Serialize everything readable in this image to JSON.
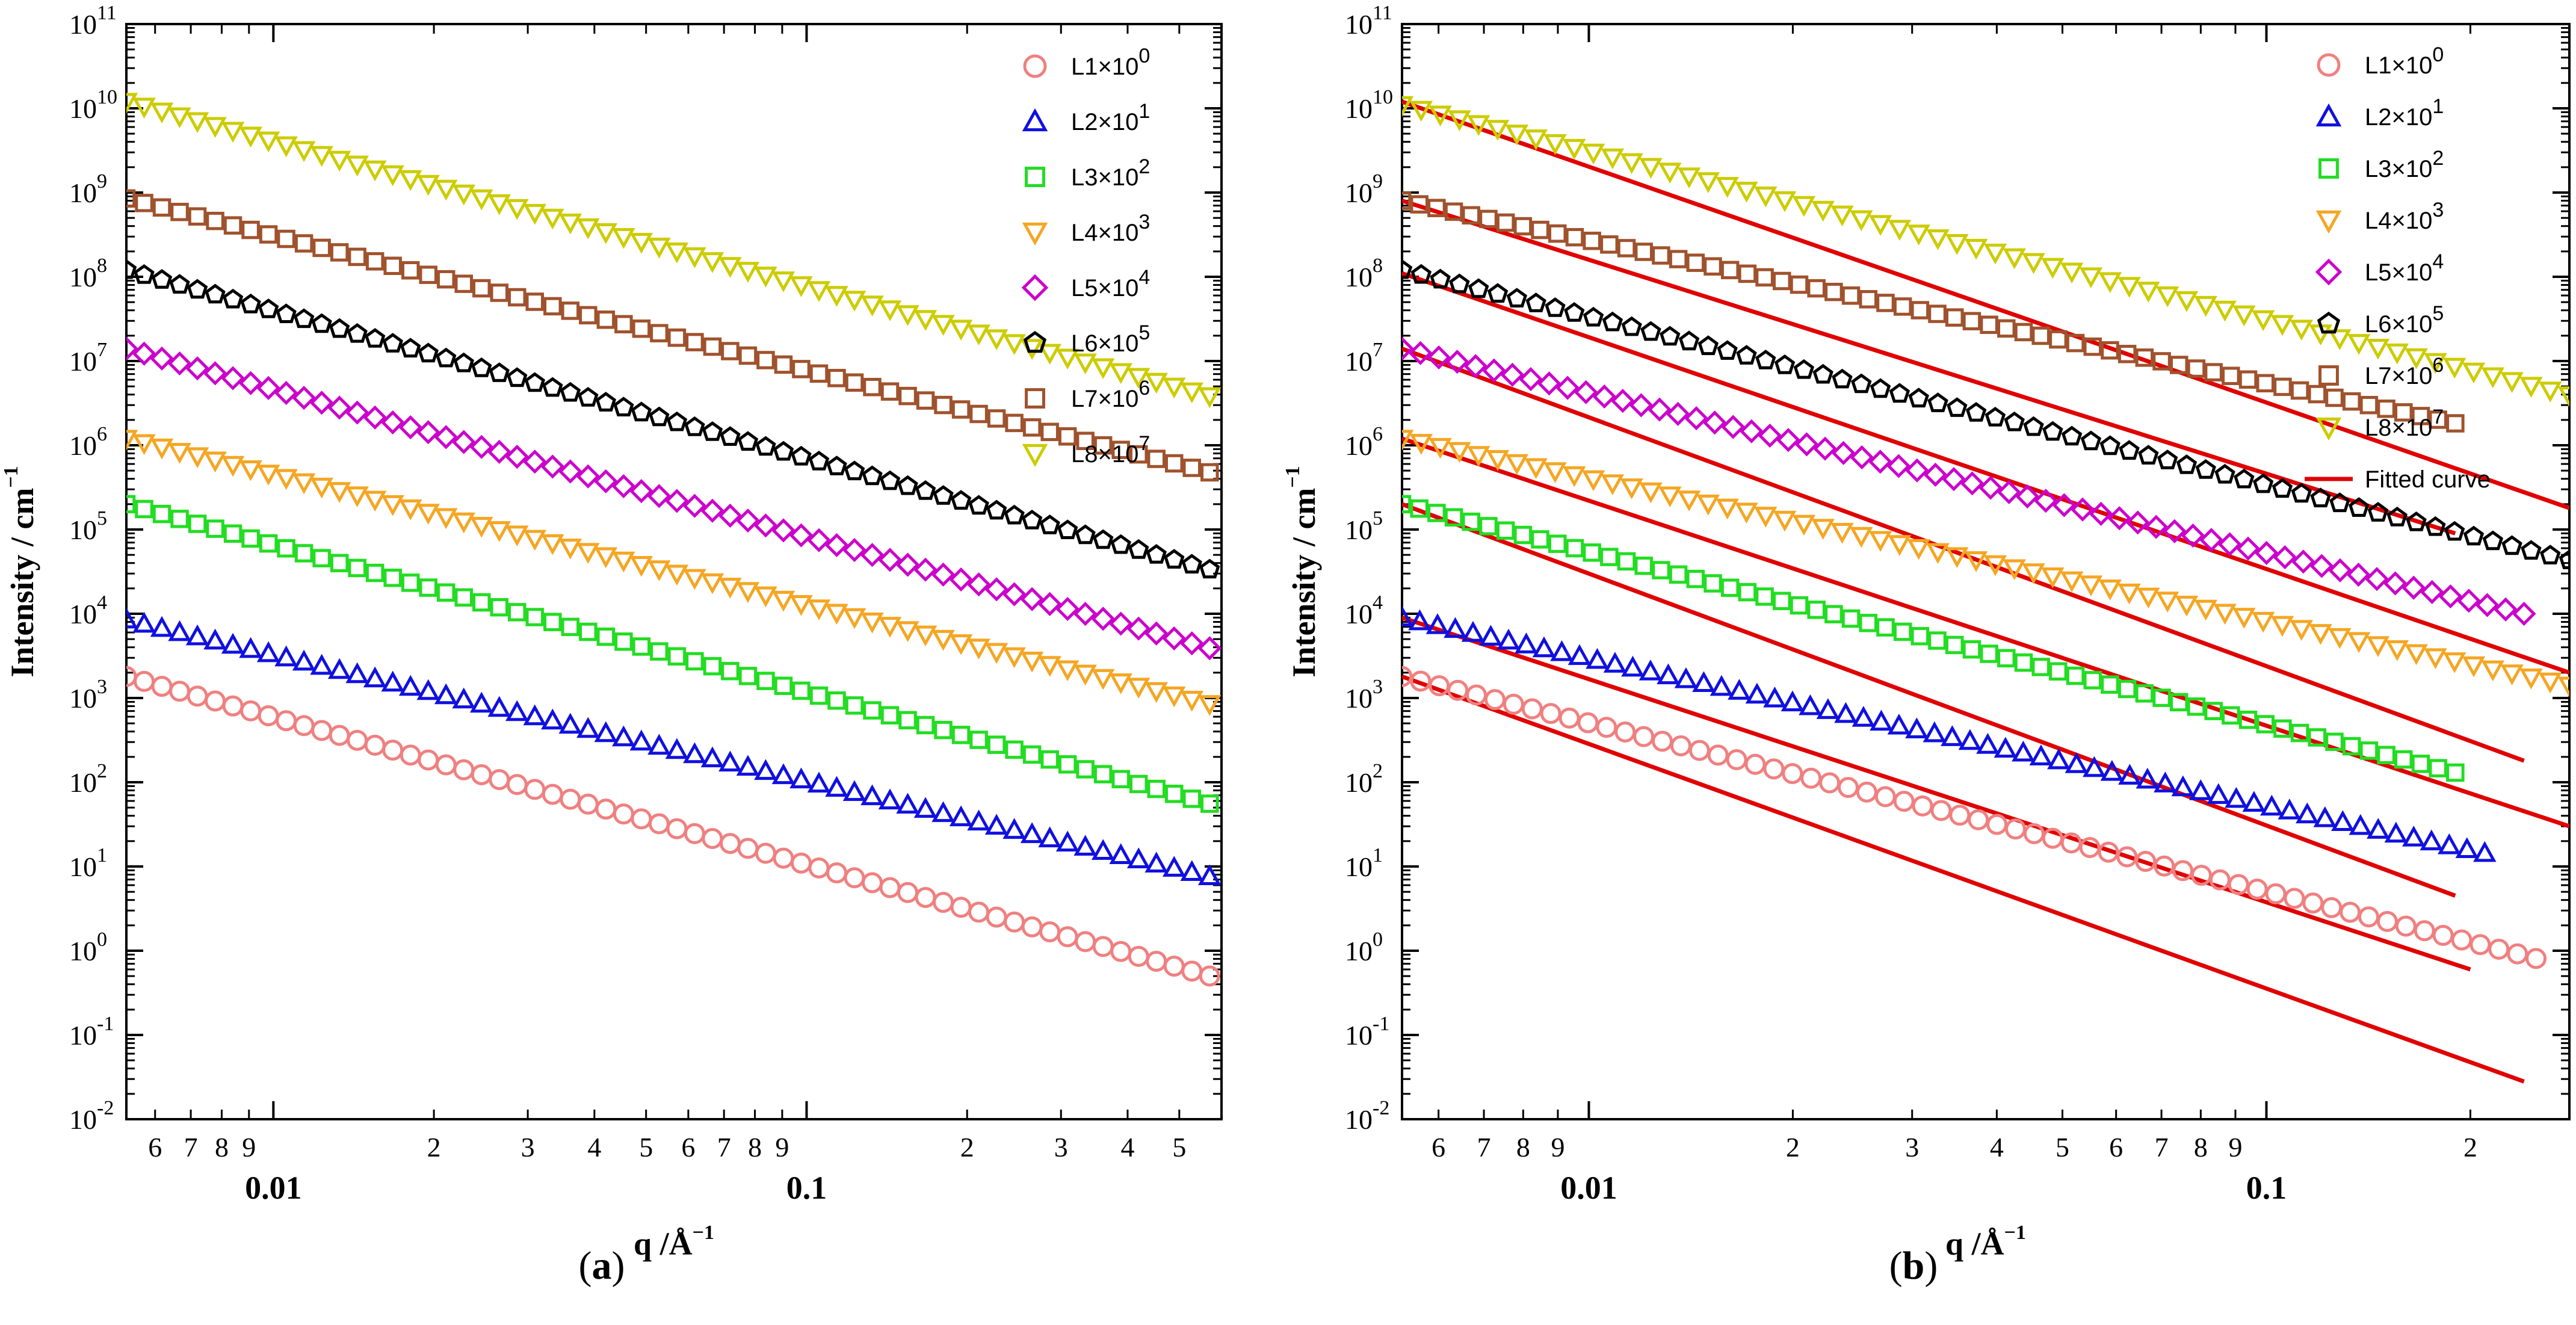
{
  "panels": [
    {
      "id": "a",
      "panel_label_open": "(",
      "panel_label_letter": "a",
      "panel_label_close": ")",
      "xlabel": "q /Å",
      "xlabel_sup": "−1",
      "ylabel": "Intensity / cm",
      "ylabel_sup": "−1",
      "y_tick_base": "10",
      "y_tick_exponents": [
        "-2",
        "-1",
        "0",
        "1",
        "2",
        "3",
        "4",
        "5",
        "6",
        "7",
        "8",
        "9",
        "10",
        "11"
      ],
      "x_minor_ticks": [
        {
          "q": 0.006,
          "label": "6"
        },
        {
          "q": 0.007,
          "label": "7"
        },
        {
          "q": 0.008,
          "label": "8"
        },
        {
          "q": 0.009,
          "label": "9"
        },
        {
          "q": 0.02,
          "label": "2"
        },
        {
          "q": 0.03,
          "label": "3"
        },
        {
          "q": 0.04,
          "label": "4"
        },
        {
          "q": 0.05,
          "label": "5"
        },
        {
          "q": 0.06,
          "label": "6"
        },
        {
          "q": 0.07,
          "label": "7"
        },
        {
          "q": 0.08,
          "label": "8"
        },
        {
          "q": 0.09,
          "label": "9"
        },
        {
          "q": 0.2,
          "label": "2"
        },
        {
          "q": 0.3,
          "label": "3"
        },
        {
          "q": 0.4,
          "label": "4"
        },
        {
          "q": 0.5,
          "label": "5"
        }
      ],
      "x_major_ticks": [
        {
          "q": 0.01,
          "label": "0.01"
        },
        {
          "q": 0.1,
          "label": "0.1"
        }
      ],
      "legend": [
        {
          "label": "L1×10",
          "sup": "0"
        },
        {
          "label": "L2×10",
          "sup": "1"
        },
        {
          "label": "L3×10",
          "sup": "2"
        },
        {
          "label": "L4×10",
          "sup": "3"
        },
        {
          "label": "L5×10",
          "sup": "4"
        },
        {
          "label": "L6×10",
          "sup": "5"
        },
        {
          "label": "L7×10",
          "sup": "6"
        },
        {
          "label": "L8×10",
          "sup": "7"
        }
      ]
    },
    {
      "id": "b",
      "panel_label_open": "(",
      "panel_label_letter": "b",
      "panel_label_close": ")",
      "xlabel": "q /Å",
      "xlabel_sup": "−1",
      "ylabel": "Intensity / cm",
      "ylabel_sup": "−1",
      "y_tick_base": "10",
      "y_tick_exponents": [
        "-2",
        "-1",
        "0",
        "1",
        "2",
        "3",
        "4",
        "5",
        "6",
        "7",
        "8",
        "9",
        "10",
        "11"
      ],
      "x_minor_ticks": [
        {
          "q": 0.006,
          "label": "6"
        },
        {
          "q": 0.007,
          "label": "7"
        },
        {
          "q": 0.008,
          "label": "8"
        },
        {
          "q": 0.009,
          "label": "9"
        },
        {
          "q": 0.02,
          "label": "2"
        },
        {
          "q": 0.03,
          "label": "3"
        },
        {
          "q": 0.04,
          "label": "4"
        },
        {
          "q": 0.05,
          "label": "5"
        },
        {
          "q": 0.06,
          "label": "6"
        },
        {
          "q": 0.07,
          "label": "7"
        },
        {
          "q": 0.08,
          "label": "8"
        },
        {
          "q": 0.09,
          "label": "9"
        },
        {
          "q": 0.2,
          "label": "2"
        }
      ],
      "x_major_ticks": [
        {
          "q": 0.01,
          "label": "0.01"
        },
        {
          "q": 0.1,
          "label": "0.1"
        }
      ],
      "legend": [
        {
          "label": "L1×10",
          "sup": "0"
        },
        {
          "label": "L2×10",
          "sup": "1"
        },
        {
          "label": "L3×10",
          "sup": "2"
        },
        {
          "label": "L4×10",
          "sup": "3"
        },
        {
          "label": "L5×10",
          "sup": "4"
        },
        {
          "label": "L6×10",
          "sup": "5"
        },
        {
          "label": "L7×10",
          "sup": "6"
        },
        {
          "label": "L8×10",
          "sup": "7"
        },
        {
          "label": "Fitted curve",
          "sup": ""
        }
      ]
    }
  ],
  "chart_data": [
    {
      "type": "scatter",
      "panel": "a",
      "xscale": "log",
      "yscale": "log",
      "xlim": [
        0.0053,
        0.6
      ],
      "ylim": [
        0.01,
        100000000000.0
      ],
      "grid": false,
      "legend_position": "top-right",
      "series": [
        {
          "name": "L1×10^0",
          "marker": "circle",
          "color": "#f08080",
          "start_value": 1800,
          "q_knee": 0.2,
          "slope_low": -1.75,
          "q_max": 0.57,
          "plateau_value": 0.1
        },
        {
          "name": "L2×10^1",
          "marker": "triangle-up",
          "color": "#1010e0",
          "start_value": 8500,
          "q_knee": 0.2,
          "slope_low": -1.5,
          "q_max": 0.57,
          "plateau_value": 1.1
        },
        {
          "name": "L3×10^2",
          "marker": "square",
          "color": "#22dd22",
          "start_value": 200000,
          "q_knee": 0.22,
          "slope_low": -1.75,
          "q_max": 0.57,
          "plateau_value": 6
        },
        {
          "name": "L4×10^3",
          "marker": "triangle-down",
          "color": "#f5a623",
          "start_value": 1200000,
          "q_knee": 0.35,
          "slope_low": -1.55,
          "q_max": 0.57,
          "plateau_value": 50
        },
        {
          "name": "L5×10^4",
          "marker": "diamond",
          "color": "#cc00cc",
          "start_value": 14000000,
          "q_knee": 0.2,
          "slope_low": -1.75,
          "q_max": 0.57,
          "plateau_value": 550
        },
        {
          "name": "L6×10^5",
          "marker": "pentagon",
          "color": "#000000",
          "start_value": 120000000,
          "q_knee": 0.22,
          "slope_low": -1.75,
          "q_max": 0.57,
          "plateau_value": 6500
        },
        {
          "name": "L7×10^6",
          "marker": "square",
          "color": "#a0522d",
          "start_value": 850000000,
          "q_knee": 0.2,
          "slope_low": -1.6,
          "q_max": 0.57,
          "plateau_value": 100000
        },
        {
          "name": "L8×10^7",
          "marker": "triangle-down",
          "color": "#cccc00",
          "start_value": 12000000000,
          "q_knee": 0.2,
          "slope_low": -1.72,
          "q_max": 0.57,
          "plateau_value": 800000
        }
      ]
    },
    {
      "type": "scatter",
      "panel": "b",
      "xscale": "log",
      "yscale": "log",
      "xlim": [
        0.0053,
        0.28
      ],
      "ylim": [
        0.01,
        100000000000.0
      ],
      "grid": false,
      "legend_position": "top-right",
      "series": [
        {
          "name": "L1×10^0",
          "marker": "circle",
          "color": "#f08080",
          "start_value": 1800,
          "slope": -2.0,
          "q_max": 0.25
        },
        {
          "name": "L2×10^1",
          "marker": "triangle-up",
          "color": "#1010e0",
          "start_value": 9000,
          "slope": -1.75,
          "q_max": 0.21
        },
        {
          "name": "L3×10^2",
          "marker": "square",
          "color": "#22dd22",
          "start_value": 200000,
          "slope": -2.05,
          "q_max": 0.19
        },
        {
          "name": "L4×10^3",
          "marker": "triangle-down",
          "color": "#f5a623",
          "start_value": 1200000,
          "slope": -1.7,
          "q_max": 0.28
        },
        {
          "name": "L5×10^4",
          "marker": "diamond",
          "color": "#cc00cc",
          "start_value": 14000000,
          "slope": -1.9,
          "q_max": 0.24
        },
        {
          "name": "L6×10^5",
          "marker": "pentagon",
          "color": "#000000",
          "start_value": 120000000,
          "slope": -2.0,
          "q_max": 0.28
        },
        {
          "name": "L7×10^6",
          "marker": "square",
          "color": "#a0522d",
          "start_value": 800000000,
          "slope": -1.7,
          "q_max": 0.19
        },
        {
          "name": "L8×10^7",
          "marker": "triangle-down",
          "color": "#cccc00",
          "start_value": 11000000000,
          "slope": -2.0,
          "q_max": 0.28
        },
        {
          "name": "Fitted curve",
          "type": "line",
          "color": "#e00000",
          "lines": [
            {
              "q0": 0.0053,
              "v0": 1800,
              "q1": 0.24,
              "v1": 0.028
            },
            {
              "q0": 0.0053,
              "v0": 9000,
              "q1": 0.2,
              "v1": 0.6
            },
            {
              "q0": 0.0053,
              "v0": 200000,
              "q1": 0.19,
              "v1": 4.5
            },
            {
              "q0": 0.0053,
              "v0": 1200000,
              "q1": 0.28,
              "v1": 30
            },
            {
              "q0": 0.0053,
              "v0": 14000000,
              "q1": 0.24,
              "v1": 180
            },
            {
              "q0": 0.0053,
              "v0": 110000000,
              "q1": 0.28,
              "v1": 2000
            },
            {
              "q0": 0.0053,
              "v0": 800000000,
              "q1": 0.19,
              "v1": 90000
            },
            {
              "q0": 0.0053,
              "v0": 12000000000,
              "q1": 0.28,
              "v1": 180000
            }
          ]
        }
      ]
    }
  ]
}
